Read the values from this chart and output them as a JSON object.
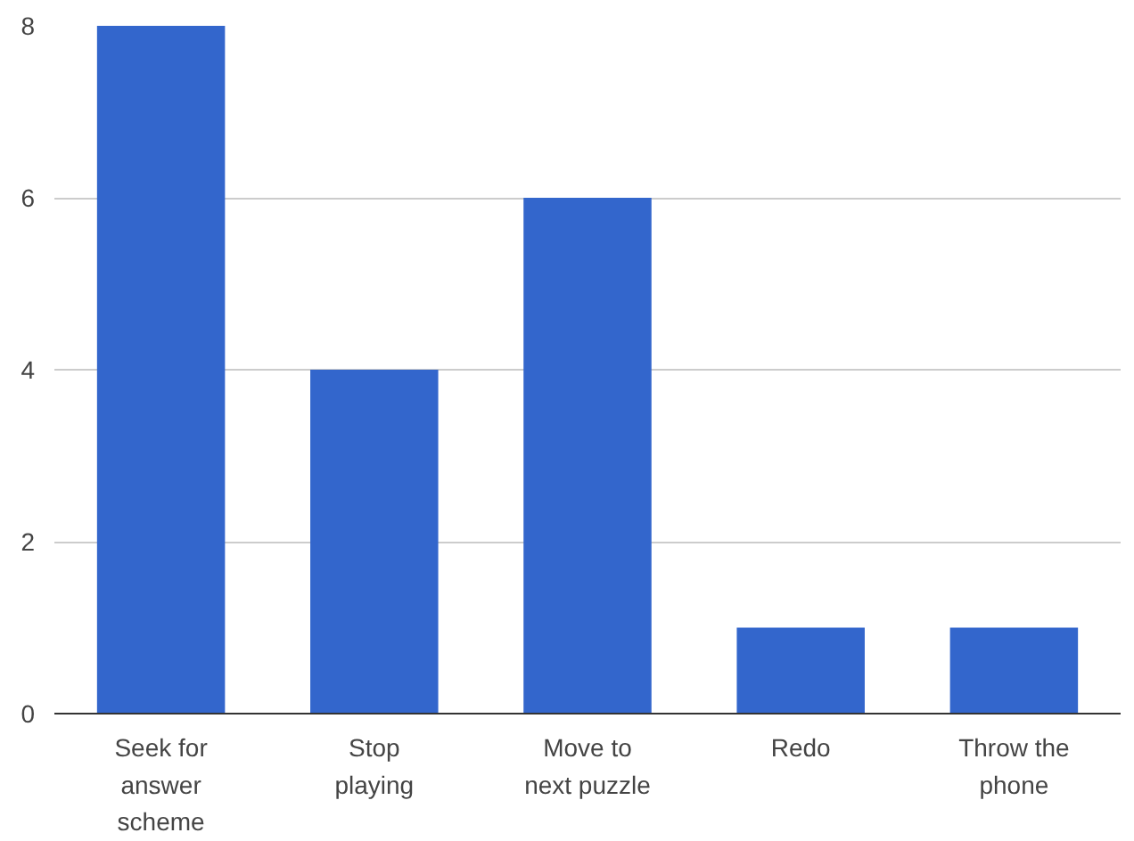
{
  "chart_data": {
    "type": "bar",
    "categories": [
      "Seek for answer scheme",
      "Stop playing",
      "Move to next puzzle",
      "Redo",
      "Throw the phone"
    ],
    "values": [
      8,
      4,
      6,
      1,
      1
    ],
    "color": "#3366cc",
    "ylim": [
      0,
      8
    ],
    "yticks": [
      0,
      2,
      4,
      6,
      8
    ],
    "grid": "y"
  }
}
